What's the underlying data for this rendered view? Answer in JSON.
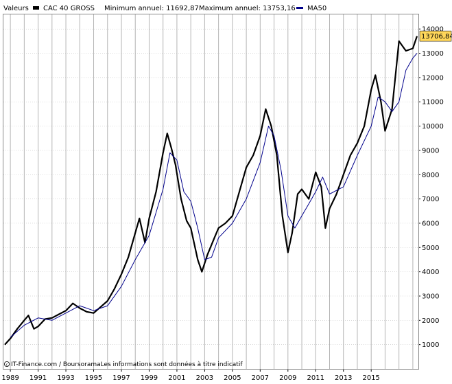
{
  "legend": {
    "values_label": "Valeurs",
    "series_label": "CAC 40 GROSS",
    "min_label": "Minimum annuel: 11692,87",
    "max_label": "Maximum annuel: 13753,16",
    "ma_label": "MA50"
  },
  "credit": {
    "icon": "copyright-icon",
    "text": "IT-Finance.com / BoursoramaLes informations sont données à titre indicatif"
  },
  "last_value_label": "13706,84",
  "colors": {
    "price": "#000000",
    "ma50": "#00008b",
    "last_value_bg": "#ffd75a",
    "grid": "#b4b4b4",
    "frame": "#888888"
  },
  "chart_data": {
    "type": "line",
    "title": "",
    "xlabel": "",
    "ylabel": "",
    "xlim": [
      1988.5,
      2018.4
    ],
    "ylim": [
      0,
      14600
    ],
    "grid": true,
    "legend_position": "top-left",
    "x_tick_labels": [
      "1989",
      "1991",
      "1993",
      "1995",
      "1997",
      "1999",
      "2001",
      "2003",
      "2005",
      "2007",
      "2009",
      "2011",
      "2013",
      "2015"
    ],
    "y_tick_labels": [
      "1000",
      "2000",
      "3000",
      "4000",
      "5000",
      "6000",
      "7000",
      "8000",
      "9000",
      "10000",
      "11000",
      "12000",
      "13000",
      "14000"
    ],
    "series": [
      {
        "name": "CAC 40 GROSS",
        "x": [
          1988.6,
          1989.0,
          1989.5,
          1990.0,
          1990.3,
          1990.7,
          1991.0,
          1991.5,
          1992.0,
          1992.5,
          1993.0,
          1993.5,
          1994.0,
          1994.5,
          1995.0,
          1995.5,
          1996.0,
          1996.5,
          1997.0,
          1997.5,
          1998.0,
          1998.3,
          1998.7,
          1999.0,
          1999.5,
          2000.0,
          2000.3,
          2000.6,
          2000.9,
          2001.3,
          2001.7,
          2002.0,
          2002.5,
          2002.8,
          2003.2,
          2003.7,
          2004.0,
          2004.5,
          2005.0,
          2005.5,
          2006.0,
          2006.5,
          2007.0,
          2007.4,
          2007.8,
          2008.2,
          2008.6,
          2009.0,
          2009.3,
          2009.7,
          2010.0,
          2010.5,
          2011.0,
          2011.4,
          2011.7,
          2012.0,
          2012.5,
          2013.0,
          2013.5,
          2014.0,
          2014.5,
          2015.0,
          2015.3,
          2015.7,
          2016.0,
          2016.5,
          2017.0,
          2017.5,
          2018.0,
          2018.3
        ],
        "values": [
          1000,
          1250,
          1650,
          2000,
          2200,
          1650,
          1750,
          2050,
          2100,
          2250,
          2400,
          2700,
          2500,
          2350,
          2300,
          2550,
          2800,
          3300,
          3900,
          4600,
          5600,
          6200,
          5200,
          6200,
          7300,
          8900,
          9700,
          9100,
          8400,
          7000,
          6100,
          5800,
          4500,
          4000,
          4700,
          5400,
          5800,
          6000,
          6300,
          7300,
          8300,
          8800,
          9600,
          10700,
          10000,
          8800,
          6300,
          4800,
          5600,
          7200,
          7400,
          7000,
          8100,
          7500,
          5800,
          6600,
          7200,
          8000,
          8800,
          9300,
          10000,
          11500,
          12100,
          11000,
          9800,
          10700,
          13500,
          13100,
          13200,
          13707
        ]
      },
      {
        "name": "MA50",
        "x": [
          1989.0,
          1990.0,
          1991.0,
          1992.0,
          1993.0,
          1994.0,
          1995.0,
          1996.0,
          1997.0,
          1998.0,
          1999.0,
          2000.0,
          2000.5,
          2001.0,
          2001.5,
          2002.0,
          2002.5,
          2003.0,
          2003.5,
          2004.0,
          2005.0,
          2006.0,
          2007.0,
          2007.6,
          2008.0,
          2008.5,
          2009.0,
          2009.5,
          2010.0,
          2010.5,
          2011.0,
          2011.5,
          2012.0,
          2013.0,
          2014.0,
          2014.5,
          2015.0,
          2015.5,
          2016.0,
          2016.5,
          2017.0,
          2017.5,
          2018.0,
          2018.3
        ],
        "values": [
          1300,
          1800,
          2100,
          2000,
          2300,
          2600,
          2400,
          2600,
          3400,
          4500,
          5500,
          7400,
          8900,
          8600,
          7300,
          6900,
          5800,
          4500,
          4600,
          5400,
          6000,
          7000,
          8500,
          10000,
          9600,
          8200,
          6300,
          5800,
          6300,
          6800,
          7300,
          7900,
          7200,
          7500,
          8800,
          9400,
          10000,
          11200,
          11000,
          10600,
          11000,
          12300,
          12800,
          13000
        ]
      }
    ]
  }
}
